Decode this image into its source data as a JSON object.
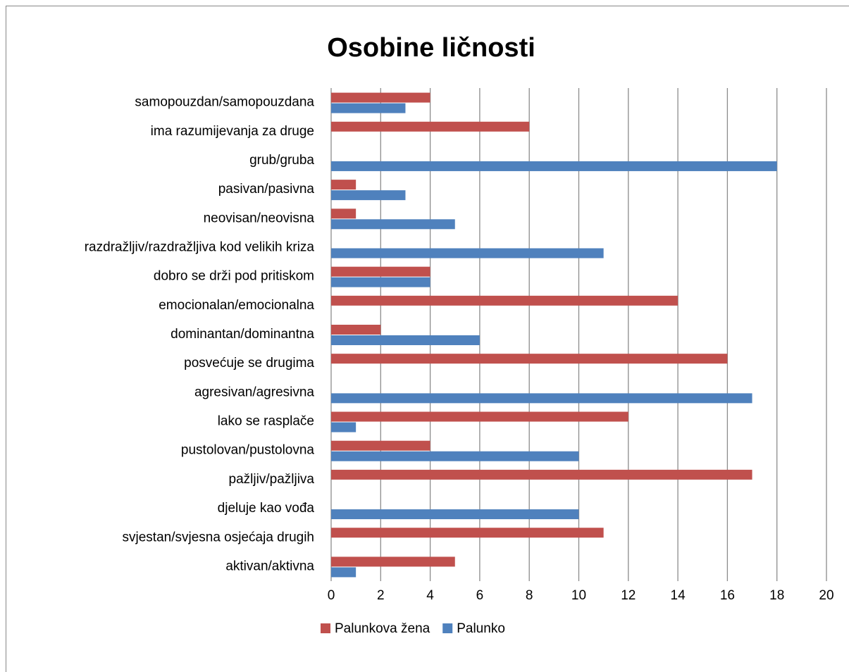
{
  "chart_data": {
    "type": "hbar",
    "title": "Osobine ličnosti",
    "categories": [
      "samopouzdan/samopouzdana",
      "ima razumijevanja za druge",
      "grub/gruba",
      "pasivan/pasivna",
      "neovisan/neovisna",
      "razdražljiv/razdražljiva kod velikih kriza",
      "dobro se drži pod pritiskom",
      "emocionalan/emocionalna",
      "dominantan/dominantna",
      "posvećuje se drugima",
      "agresivan/agresivna",
      "lako se rasplače",
      "pustolovan/pustolovna",
      "pažljiv/pažljiva",
      "djeluje kao vođa",
      "svjestan/svjesna osjećaja drugih",
      "aktivan/aktivna"
    ],
    "series": [
      {
        "name": "Palunkova žena",
        "color": "#c0504d",
        "values": [
          4,
          8,
          0,
          1,
          1,
          0,
          4,
          14,
          2,
          16,
          0,
          12,
          4,
          17,
          0,
          11,
          5
        ]
      },
      {
        "name": "Palunko",
        "color": "#4f81bd",
        "values": [
          3,
          0,
          18,
          3,
          5,
          11,
          4,
          0,
          6,
          0,
          17,
          1,
          10,
          0,
          10,
          0,
          1
        ]
      }
    ],
    "xlim": [
      0,
      20
    ],
    "xticks": [
      0,
      2,
      4,
      6,
      8,
      10,
      12,
      14,
      16,
      18,
      20
    ],
    "grid": true,
    "legend": "bottom"
  }
}
